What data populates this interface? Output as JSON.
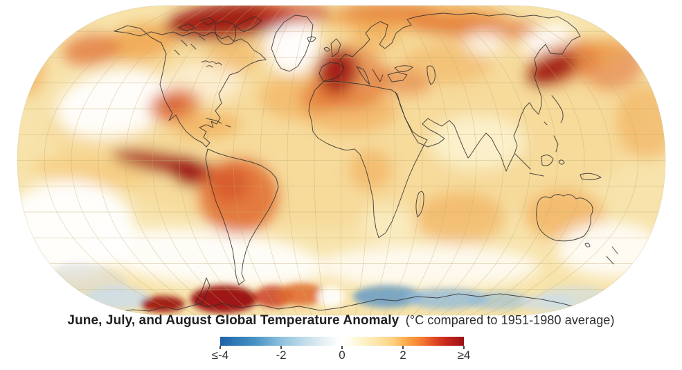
{
  "title": {
    "bold": "June, July, and August Global Temperature Anomaly",
    "normal": "(°C compared to 1951-1980 average)"
  },
  "legend": {
    "labels": [
      "≤-4",
      "-2",
      "0",
      "2",
      "≥4"
    ],
    "positions_pct": [
      0,
      25,
      50,
      75,
      100
    ],
    "stops": [
      "#1f62a9 0%",
      "#2f7cb6 7%",
      "#4691c3 14%",
      "#8ec0dc 25%",
      "#b9d8e8 33%",
      "#e4eff3 42%",
      "#fcfdfc 48%",
      "#ffffff 50%",
      "#fffdf0 53%",
      "#fdf3cc 58%",
      "#fde4a6 65%",
      "#fdd07f 71%",
      "#fcab4d 76%",
      "#f58232 82%",
      "#e14922 88%",
      "#c5271c 93%",
      "#9d1117 100%"
    ]
  },
  "chart_data": {
    "type": "heatmap",
    "title": "June, July, and August Global Temperature Anomaly",
    "units": "°C compared to 1951-1980 average",
    "projection": "Robinson world map",
    "scale": {
      "min": -4,
      "max": 4,
      "tick_labels": [
        "≤-4",
        "-2",
        "0",
        "2",
        "≥4"
      ],
      "cold_color": "#1f62a9",
      "zero_color": "#ffffff",
      "hot_color": "#9d1117"
    },
    "regions": [
      {
        "region": "Canadian Arctic",
        "anomaly_c": "3 to ≥4"
      },
      {
        "region": "Greenland",
        "anomaly_c": "about 0"
      },
      {
        "region": "Western Europe / Iberia",
        "anomaly_c": "3 to ≥4"
      },
      {
        "region": "Northern Siberia coast",
        "anomaly_c": "2 to 3"
      },
      {
        "region": "Kamchatka / Sea of Okhotsk",
        "anomaly_c": "3 to ≥4"
      },
      {
        "region": "Central North Pacific",
        "anomaly_c": "about 0"
      },
      {
        "region": "Mexico / southwestern United States",
        "anomaly_c": "2 to 3"
      },
      {
        "region": "Peru coast / southeast Pacific",
        "anomaly_c": "≥4"
      },
      {
        "region": "Central South America",
        "anomaly_c": "2 to 3"
      },
      {
        "region": "Sahara / North Africa",
        "anomaly_c": "1 to 2"
      },
      {
        "region": "India / Southeast Asia",
        "anomaly_c": "0 to 1"
      },
      {
        "region": "Australia",
        "anomaly_c": "1 to 2"
      },
      {
        "region": "Southern mid-latitude oceans",
        "anomaly_c": "about 0"
      },
      {
        "region": "West Antarctica",
        "anomaly_c": "≥4"
      },
      {
        "region": "East Antarctica coast",
        "anomaly_c": "-2 to -4"
      }
    ]
  },
  "field": {
    "palette": {
      "base": "#f7e3ab",
      "white": "#ffffff",
      "pale": "#fcf3d2",
      "warm1": "#f6c878",
      "warm2": "#f0a148",
      "warm3": "#e06a2e",
      "hot": "#c93a1e",
      "vhot": "#9e1512",
      "cool1": "#ccdde9",
      "cool2": "#93bcdb",
      "cool3": "#5d97c8",
      "grey": "#d8dad8"
    },
    "soft": [
      [
        500,
        180,
        430,
        150,
        0,
        "warm1",
        0.3
      ],
      [
        600,
        25,
        130,
        20,
        0,
        "warm2",
        0.85
      ],
      [
        690,
        40,
        100,
        16,
        3,
        "warm3",
        0.65
      ],
      [
        540,
        55,
        35,
        20,
        0,
        "warm2",
        0.5
      ],
      [
        205,
        60,
        50,
        26,
        -10,
        "warm2",
        0.8
      ],
      [
        38,
        95,
        28,
        45,
        0,
        "warm2",
        0.55
      ],
      [
        408,
        66,
        28,
        16,
        0,
        "warm3",
        0.5
      ],
      [
        425,
        140,
        50,
        32,
        0,
        "warm2",
        0.5
      ],
      [
        505,
        160,
        70,
        32,
        0,
        "warm2",
        0.55
      ],
      [
        468,
        140,
        35,
        20,
        0,
        "warm3",
        0.6
      ],
      [
        535,
        245,
        32,
        30,
        0,
        "warm2",
        0.5
      ],
      [
        130,
        247,
        85,
        20,
        5,
        "warm1",
        0.65
      ],
      [
        665,
        315,
        65,
        38,
        0,
        "warm2",
        0.5
      ],
      [
        815,
        310,
        58,
        36,
        0,
        "warm2",
        0.6
      ],
      [
        935,
        175,
        45,
        55,
        0,
        "warm2",
        0.5
      ],
      [
        885,
        95,
        45,
        35,
        -12,
        "warm3",
        0.55
      ],
      [
        862,
        75,
        40,
        20,
        -12,
        "warm2",
        0.6
      ],
      [
        335,
        82,
        38,
        24,
        0,
        "warm2",
        0.45
      ],
      [
        645,
        92,
        65,
        30,
        0,
        "warm2",
        0.4
      ],
      [
        165,
        150,
        85,
        48,
        -10,
        "white",
        0.95
      ],
      [
        295,
        118,
        55,
        28,
        0,
        "white",
        0.5
      ],
      [
        422,
        62,
        38,
        44,
        0,
        "white",
        0.97
      ],
      [
        420,
        26,
        20,
        9,
        0,
        "cool1",
        0.5
      ],
      [
        790,
        56,
        38,
        18,
        -22,
        "white",
        0.9
      ],
      [
        700,
        62,
        28,
        18,
        0,
        "white",
        0.65
      ],
      [
        690,
        205,
        68,
        38,
        0,
        "pale",
        0.85
      ],
      [
        100,
        330,
        95,
        70,
        0,
        "white",
        0.95
      ],
      [
        300,
        372,
        170,
        40,
        5,
        "white",
        0.9
      ],
      [
        620,
        385,
        160,
        32,
        0,
        "white",
        0.8
      ],
      [
        880,
        360,
        75,
        40,
        0,
        "white",
        0.85
      ],
      [
        560,
        322,
        40,
        25,
        0,
        "pale",
        0.6
      ],
      [
        330,
        30,
        92,
        26,
        -6,
        "vhot",
        0.95
      ],
      [
        425,
        20,
        55,
        14,
        0,
        "hot",
        0.75
      ],
      [
        560,
        16,
        70,
        13,
        0,
        "warm3",
        0.55
      ],
      [
        505,
        112,
        55,
        45,
        10,
        "warm3",
        0.6
      ],
      [
        488,
        102,
        28,
        32,
        15,
        "vhot",
        0.9
      ],
      [
        580,
        118,
        42,
        20,
        8,
        "warm3",
        0.5
      ],
      [
        812,
        92,
        55,
        30,
        -20,
        "warm3",
        0.6
      ],
      [
        797,
        100,
        40,
        20,
        -25,
        "vhot",
        0.9
      ],
      [
        132,
        72,
        42,
        22,
        -8,
        "warm3",
        0.7
      ],
      [
        252,
        152,
        38,
        24,
        -12,
        "warm3",
        0.75
      ],
      [
        247,
        150,
        20,
        13,
        -12,
        "hot",
        0.5
      ],
      [
        300,
        182,
        48,
        18,
        -5,
        "warm2",
        0.6
      ],
      [
        240,
        236,
        80,
        15,
        10,
        "vhot",
        0.8
      ],
      [
        272,
        247,
        26,
        20,
        25,
        "vhot",
        0.95
      ],
      [
        345,
        283,
        58,
        55,
        0,
        "warm3",
        0.85
      ],
      [
        332,
        266,
        28,
        26,
        0,
        "hot",
        0.45
      ]
    ],
    "crisp": [
      [
        130,
        405,
        55,
        24,
        10,
        "grey",
        0.6
      ],
      [
        170,
        430,
        46,
        17,
        0,
        "cool1",
        0.85
      ],
      [
        235,
        439,
        32,
        12,
        0,
        "vhot",
        0.95
      ],
      [
        323,
        432,
        48,
        20,
        0,
        "vhot",
        1.0
      ],
      [
        395,
        428,
        28,
        16,
        0,
        "hot",
        0.8
      ],
      [
        435,
        425,
        35,
        16,
        0,
        "warm3",
        0.85
      ],
      [
        478,
        428,
        20,
        15,
        0,
        "white",
        0.9
      ],
      [
        560,
        428,
        50,
        16,
        0,
        "cool3",
        0.8
      ],
      [
        645,
        431,
        60,
        15,
        0,
        "cool2",
        0.8
      ],
      [
        720,
        434,
        45,
        13,
        0,
        "cool2",
        0.6
      ],
      [
        790,
        437,
        40,
        12,
        0,
        "cool1",
        0.7
      ],
      [
        830,
        430,
        50,
        18,
        0,
        "cool1",
        0.6
      ]
    ],
    "graticule": {
      "color": "#c3ae6f",
      "opacity": 0.5,
      "step_deg": 15
    },
    "coastline_color": "#2f2f2f"
  }
}
